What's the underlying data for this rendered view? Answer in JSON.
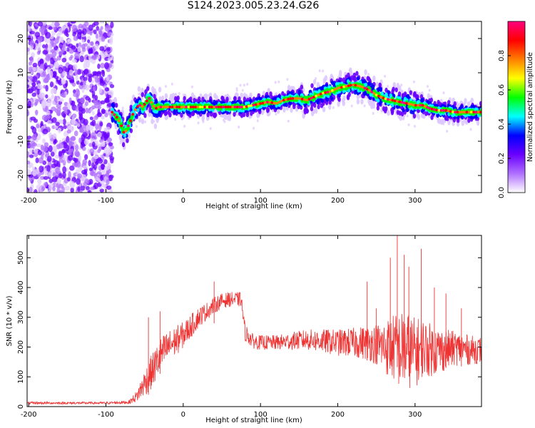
{
  "figure": {
    "title": "S124.2023.005.23.24.G26"
  },
  "chart_data": [
    {
      "type": "heatmap",
      "title": "S124.2023.005.23.24.G26",
      "xlabel": "Height of straight line (km)",
      "ylabel": "Frequency (Hz)",
      "xlim": [
        -202,
        386
      ],
      "ylim": [
        -25,
        25
      ],
      "xticks": [
        -200,
        -100,
        0,
        100,
        200,
        300
      ],
      "yticks": [
        -20,
        -10,
        0,
        10,
        20
      ],
      "grid": false,
      "colorbar": {
        "label": "Normalized spectral amplitude",
        "range": [
          0,
          1
        ],
        "ticks": [
          "0.0",
          "0.2",
          "0.4",
          "0.6",
          "0.8"
        ],
        "colormap": [
          "#ffffff",
          "#b070ff",
          "#6a00ff",
          "#0000ff",
          "#00ffff",
          "#00ff00",
          "#ffff00",
          "#ff7f00",
          "#ff0000",
          "#ff0080"
        ]
      },
      "noise_region_x": [
        -202,
        -92
      ],
      "ridge": {
        "x": [
          -92,
          -88,
          -84,
          -80,
          -76,
          -72,
          -68,
          -64,
          -60,
          -56,
          -52,
          -48,
          -44,
          -40,
          -36,
          -32,
          -28,
          -20,
          0,
          20,
          40,
          60,
          80,
          90,
          100,
          110,
          120,
          130,
          140,
          150,
          160,
          170,
          180,
          190,
          200,
          210,
          220,
          230,
          240,
          250,
          260,
          270,
          280,
          290,
          300,
          310,
          320,
          330,
          340,
          350,
          360,
          370,
          386
        ],
        "y": [
          -1.5,
          -2.5,
          -3.5,
          -5.5,
          -8.0,
          -6.0,
          -4.0,
          -1.5,
          0.0,
          0.5,
          0.0,
          1.5,
          2.5,
          1.0,
          -0.5,
          0.0,
          0.0,
          0.0,
          0.0,
          0.0,
          0.0,
          0.0,
          0.0,
          0.5,
          1.0,
          1.5,
          1.0,
          2.0,
          2.5,
          2.5,
          2.0,
          3.0,
          4.0,
          4.5,
          5.5,
          6.0,
          6.5,
          6.0,
          5.0,
          3.5,
          2.5,
          2.0,
          1.5,
          1.0,
          0.5,
          0.5,
          -0.5,
          -1.0,
          -1.0,
          -1.5,
          -1.5,
          -1.5,
          -1.5
        ]
      }
    },
    {
      "type": "line",
      "title": "",
      "xlabel": "Height of straight line (km)",
      "ylabel": "SNR (10 * v/v)",
      "xlim": [
        -202,
        386
      ],
      "ylim": [
        0,
        575
      ],
      "xticks": [
        -200,
        -100,
        0,
        100,
        200,
        300
      ],
      "yticks": [
        0,
        100,
        200,
        300,
        400,
        500
      ],
      "grid": false,
      "series": [
        {
          "color": "#ee3333",
          "envelope_x": [
            -202,
            -150,
            -100,
            -70,
            -60,
            -50,
            -40,
            -30,
            -20,
            -10,
            0,
            10,
            20,
            30,
            40,
            50,
            60,
            70,
            75,
            80,
            90,
            100,
            120,
            140,
            160,
            180,
            200,
            220,
            240,
            250,
            260,
            270,
            280,
            290,
            300,
            310,
            320,
            330,
            340,
            350,
            360,
            370,
            386
          ],
          "envelope_mean": [
            12,
            12,
            12,
            15,
            35,
            80,
            120,
            170,
            200,
            220,
            240,
            270,
            300,
            320,
            340,
            355,
            360,
            360,
            360,
            250,
            220,
            215,
            215,
            220,
            225,
            220,
            215,
            215,
            215,
            210,
            200,
            200,
            190,
            190,
            180,
            200,
            190,
            190,
            190,
            195,
            195,
            190,
            190
          ],
          "envelope_amp": [
            4,
            4,
            4,
            6,
            20,
            45,
            60,
            60,
            55,
            50,
            45,
            40,
            35,
            30,
            28,
            25,
            25,
            25,
            25,
            30,
            25,
            25,
            25,
            30,
            35,
            40,
            45,
            50,
            60,
            70,
            90,
            110,
            130,
            130,
            120,
            100,
            90,
            80,
            70,
            60,
            55,
            50,
            45
          ],
          "peaks": [
            [
              -45,
              300
            ],
            [
              -30,
              320
            ],
            [
              40,
              420
            ],
            [
              238,
              420
            ],
            [
              250,
              330
            ],
            [
              268,
              500
            ],
            [
              277,
              580
            ],
            [
              286,
              510
            ],
            [
              292,
              470
            ],
            [
              308,
              530
            ],
            [
              325,
              400
            ],
            [
              340,
              380
            ],
            [
              360,
              330
            ]
          ]
        }
      ]
    }
  ]
}
